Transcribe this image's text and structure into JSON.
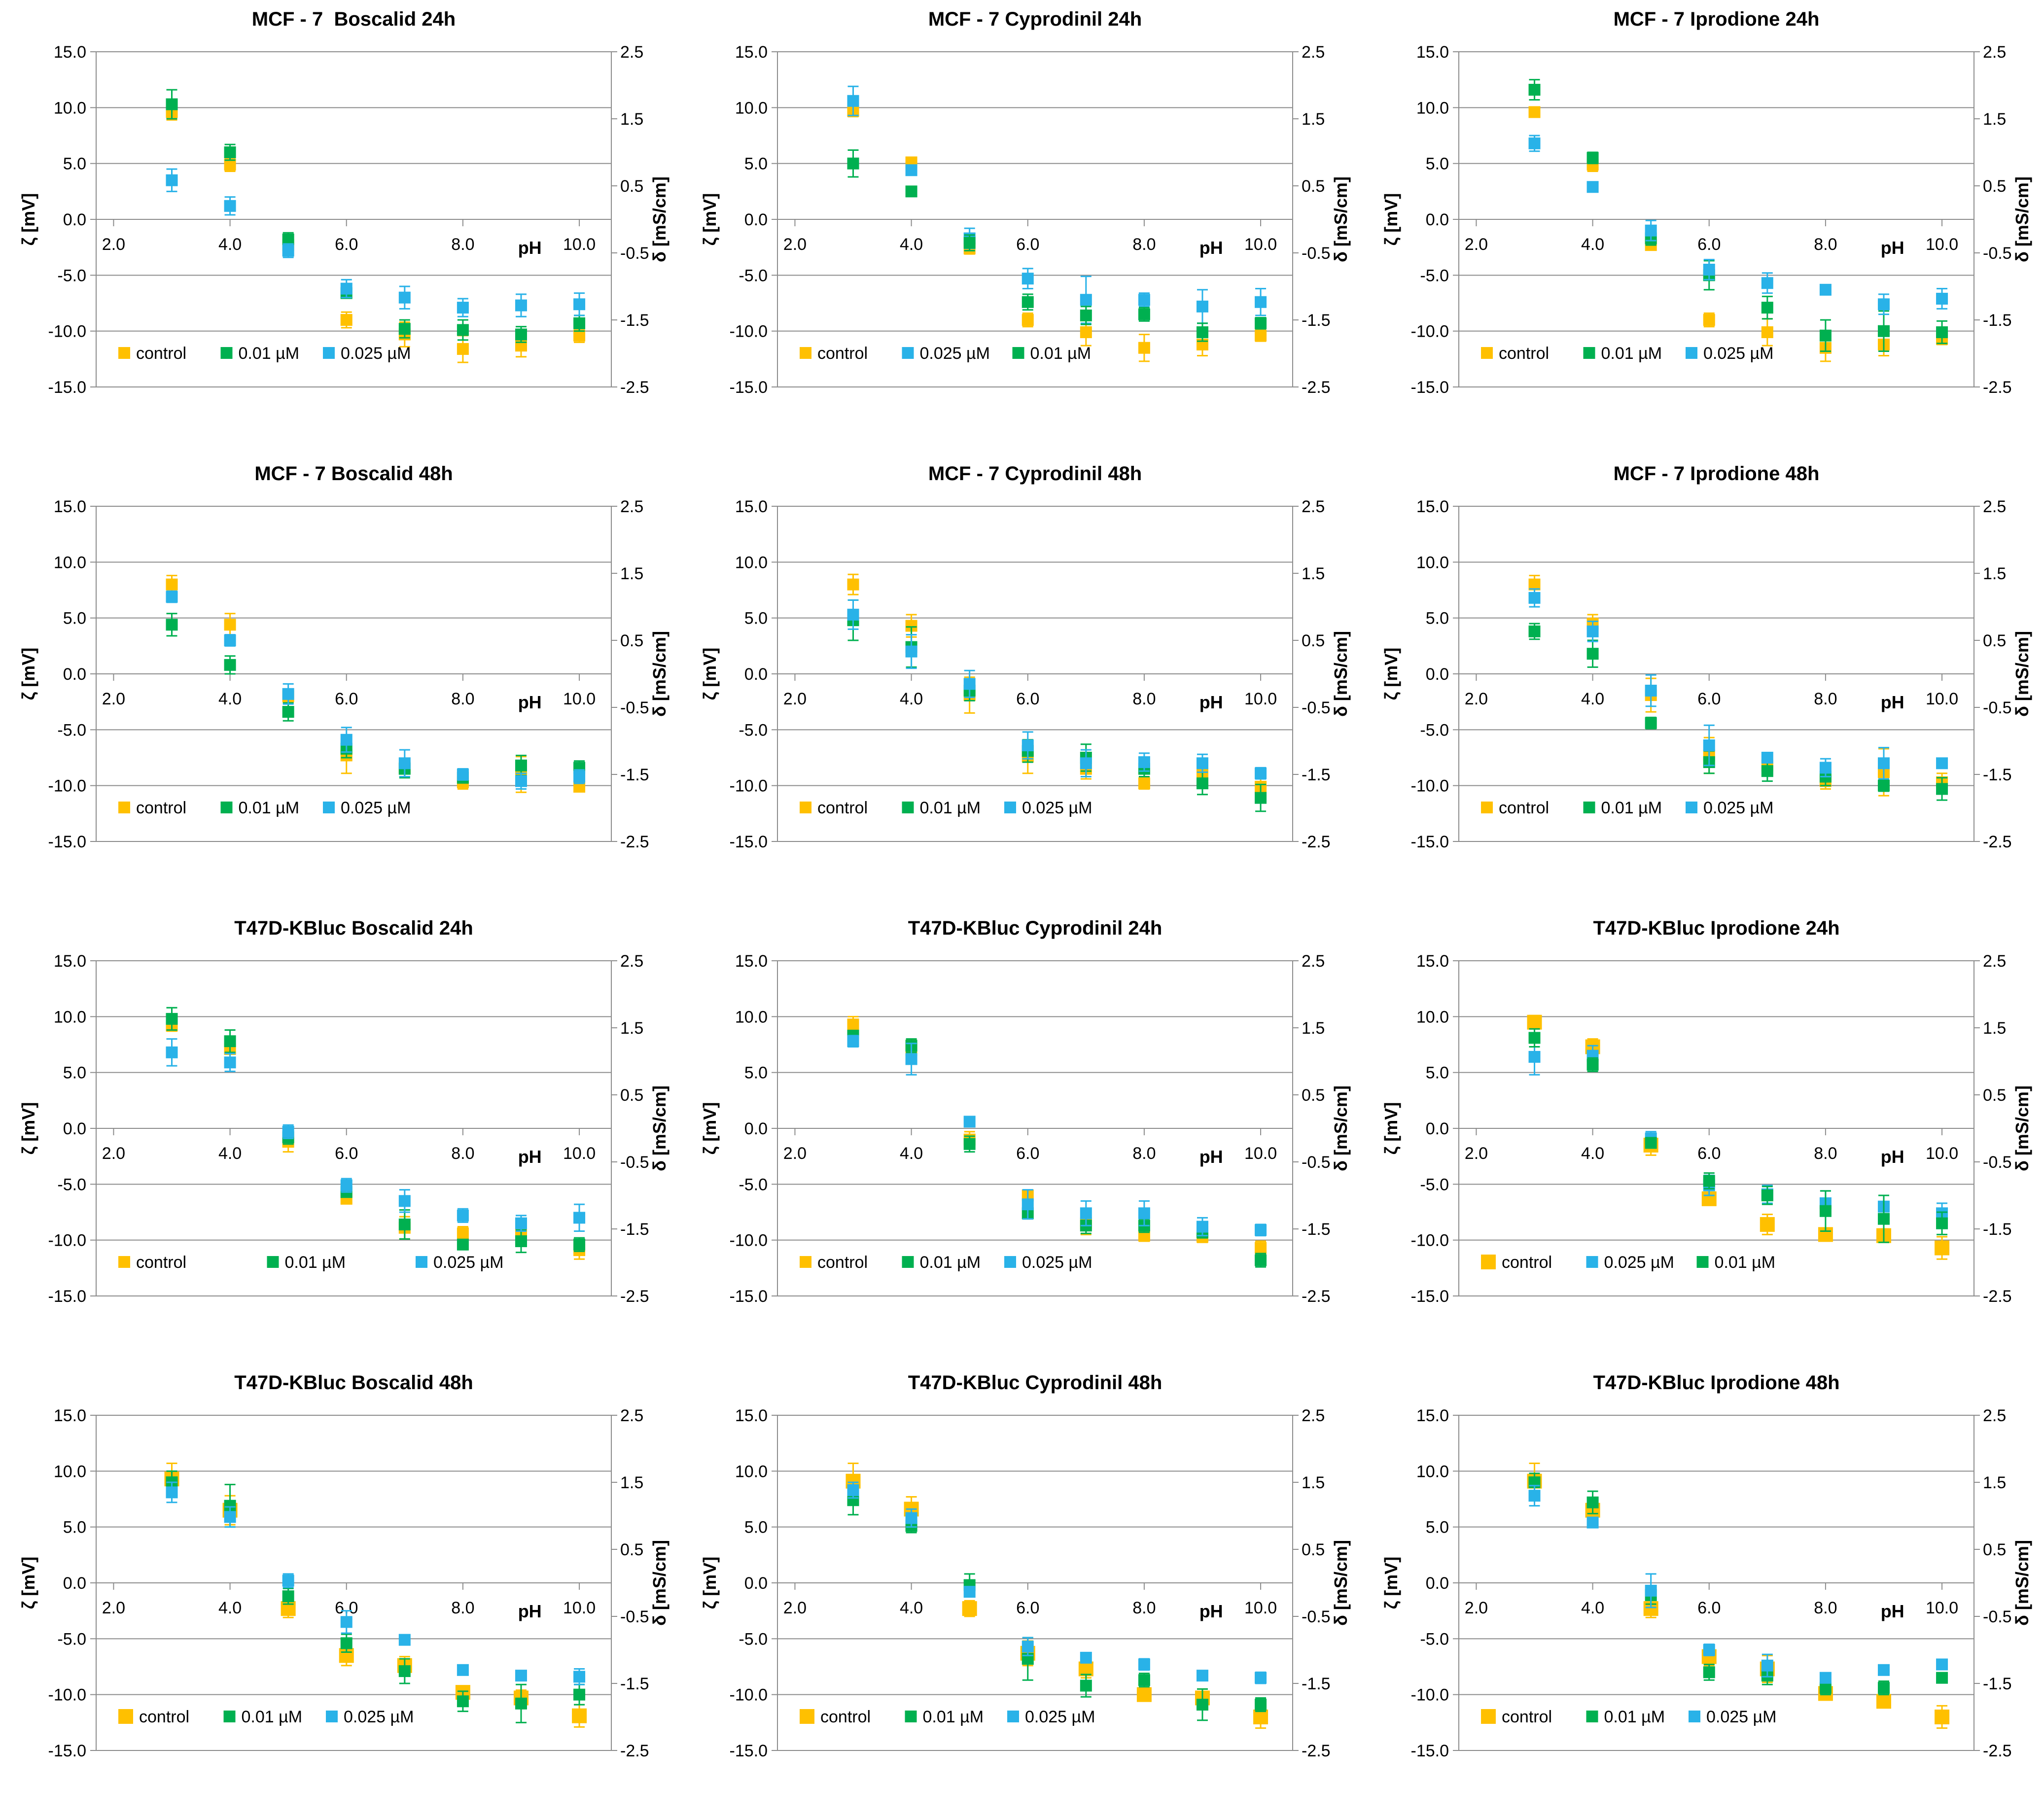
{
  "figure": {
    "kind": "scatter-grid",
    "rows": 4,
    "cols": 3,
    "background": "#FFFFFF"
  },
  "colors": {
    "control": "#FFC000",
    "um001": "#00B050",
    "um0025": "#29B2E8",
    "grid": "#8C8C8C",
    "text": "#000000"
  },
  "series_labels": {
    "control": "control",
    "um001": "0.01 µM",
    "um0025": "0.025 µM"
  },
  "axes": {
    "xlabel": "pH",
    "ylabel_left": "ζ [mV]",
    "ylabel_right": "δ [mS/cm]",
    "x_ticks": [
      2,
      4,
      6,
      8,
      10
    ],
    "x_tick_labels": [
      "2.0",
      "4.0",
      "6.0",
      "8.0",
      "10.0"
    ],
    "y_left_ticks": [
      15,
      10,
      5,
      0,
      -5,
      -10,
      -15
    ],
    "y_left_tick_labels": [
      "15.0",
      "10.0",
      "5.0",
      "0.0",
      "-5.0",
      "-10.0",
      "-15.0"
    ],
    "y_right_ticks": [
      2.5,
      1.5,
      0.5,
      -0.5,
      -1.5,
      -2.5
    ],
    "y_right_tick_labels": [
      "2.5",
      "1.5",
      "0.5",
      "-0.5",
      "-1.5",
      "-2.5"
    ],
    "xlim": [
      1.7,
      10.55
    ],
    "ylim_left": [
      -15,
      15
    ],
    "ylim_right": [
      -2.5,
      2.5
    ],
    "grid": "horizontal-major"
  },
  "x_values": [
    3,
    4,
    5,
    6,
    7,
    8,
    9,
    10
  ],
  "chart_data": [
    {
      "type": "scatter",
      "title": "MCF - 7  Boscalid 24h",
      "series": [
        {
          "key": "control",
          "values": [
            9.6,
            4.9,
            -2.3,
            -9.0,
            -10.3,
            -11.6,
            -11.3,
            -10.4
          ],
          "errors": [
            0.7,
            0.6,
            0.5,
            0.7,
            1.1,
            1.2,
            1.0,
            0.6
          ]
        },
        {
          "key": "um001",
          "values": [
            10.3,
            6.0,
            -1.8,
            -6.6,
            -9.8,
            -9.9,
            -10.3,
            -9.3
          ],
          "errors": [
            1.3,
            0.7,
            0.6,
            0.4,
            0.8,
            0.9,
            0.7,
            0.7
          ]
        },
        {
          "key": "um0025",
          "values": [
            3.5,
            1.2,
            -2.8,
            -6.2,
            -7.0,
            -7.9,
            -7.7,
            -7.6
          ],
          "errors": [
            1.0,
            0.8,
            0.6,
            0.8,
            1.0,
            0.8,
            1.0,
            1.0
          ]
        }
      ]
    },
    {
      "type": "scatter",
      "title": "MCF - 7 Cyprodinil 24h",
      "series": [
        {
          "key": "control",
          "values": [
            9.7,
            5.1,
            -2.6,
            -9.0,
            -10.1,
            -11.5,
            -11.2,
            -10.4
          ],
          "errors": [
            0.5,
            0.4,
            0.5,
            0.6,
            1.2,
            1.2,
            1.0,
            0.5
          ]
        },
        {
          "key": "um0025",
          "values": [
            10.6,
            4.4,
            -1.7,
            -5.3,
            -7.2,
            -7.2,
            -7.8,
            -7.4
          ],
          "errors": [
            1.3,
            0.4,
            0.9,
            0.9,
            2.1,
            0.6,
            1.5,
            1.2
          ]
        },
        {
          "key": "um001",
          "values": [
            5.0,
            2.5,
            -2.1,
            -7.4,
            -8.6,
            -8.5,
            -10.1,
            -9.3
          ],
          "errors": [
            1.2,
            0.4,
            0.7,
            0.7,
            0.8,
            0.6,
            0.8,
            0.5
          ]
        }
      ]
    },
    {
      "type": "scatter",
      "title": "MCF - 7 Iprodione 24h",
      "series": [
        {
          "key": "control",
          "values": [
            9.6,
            4.9,
            -2.3,
            -9.0,
            -10.1,
            -11.5,
            -11.2,
            -10.7
          ],
          "errors": [
            0.4,
            0.6,
            0.4,
            0.6,
            1.2,
            1.2,
            1.0,
            0.5
          ]
        },
        {
          "key": "um001",
          "values": [
            11.6,
            5.5,
            -1.7,
            -5.0,
            -7.9,
            -10.4,
            -10.0,
            -10.1
          ],
          "errors": [
            0.9,
            0.5,
            0.6,
            1.3,
            1.0,
            1.4,
            1.8,
            1.0
          ]
        },
        {
          "key": "um0025",
          "values": [
            6.8,
            2.9,
            -1.0,
            -4.5,
            -5.7,
            -6.3,
            -7.6,
            -7.1
          ],
          "errors": [
            0.7,
            0.4,
            0.9,
            0.9,
            0.9,
            0.3,
            0.9,
            0.9
          ]
        }
      ]
    },
    {
      "type": "scatter",
      "title": "MCF - 7 Boscalid 48h",
      "series": [
        {
          "key": "control",
          "values": [
            8.0,
            4.4,
            -2.0,
            -7.3,
            -8.4,
            -9.7,
            -9.0,
            -10.1
          ],
          "errors": [
            0.8,
            1.0,
            0.6,
            1.6,
            0.8,
            0.6,
            1.6,
            0.4
          ]
        },
        {
          "key": "um001",
          "values": [
            4.4,
            0.8,
            -3.4,
            -6.7,
            -8.5,
            -9.3,
            -8.2,
            -8.4
          ],
          "errors": [
            1.0,
            0.8,
            0.8,
            0.8,
            0.8,
            0.4,
            0.9,
            0.6
          ]
        },
        {
          "key": "um0025",
          "values": [
            6.9,
            3.0,
            -1.8,
            -5.9,
            -8.0,
            -9.0,
            -9.6,
            -9.2
          ],
          "errors": [
            0.5,
            0.5,
            0.9,
            1.1,
            1.2,
            0.5,
            0.7,
            0.6
          ]
        }
      ]
    },
    {
      "type": "scatter",
      "title": "MCF - 7 Cyprodinil 48h",
      "series": [
        {
          "key": "control",
          "values": [
            8.0,
            4.3,
            -1.9,
            -7.4,
            -8.5,
            -9.8,
            -9.0,
            -10.1
          ],
          "errors": [
            0.9,
            1.0,
            1.6,
            1.5,
            0.9,
            0.5,
            0.7,
            0.8
          ]
        },
        {
          "key": "um001",
          "values": [
            4.8,
            2.4,
            -1.5,
            -6.9,
            -7.5,
            -8.5,
            -9.8,
            -11.1
          ],
          "errors": [
            1.8,
            1.8,
            0.9,
            1.0,
            1.2,
            0.7,
            1.0,
            1.2
          ]
        },
        {
          "key": "um0025",
          "values": [
            5.3,
            2.0,
            -0.9,
            -6.4,
            -8.0,
            -7.9,
            -8.0,
            -8.9
          ],
          "errors": [
            1.3,
            1.5,
            1.2,
            1.2,
            1.2,
            0.8,
            0.8,
            0.5
          ]
        }
      ]
    },
    {
      "type": "scatter",
      "title": "MCF - 7 Iprodione 48h",
      "series": [
        {
          "key": "control",
          "values": [
            8.0,
            4.5,
            -1.9,
            -7.3,
            -8.2,
            -9.6,
            -8.8,
            -9.7
          ],
          "errors": [
            0.8,
            0.8,
            1.5,
            1.6,
            0.9,
            0.7,
            2.1,
            0.8
          ]
        },
        {
          "key": "um001",
          "values": [
            3.8,
            1.8,
            -4.4,
            -7.9,
            -8.7,
            -9.2,
            -10.0,
            -10.3
          ],
          "errors": [
            0.7,
            1.2,
            0.5,
            1.0,
            0.9,
            0.8,
            0.5,
            1.0
          ]
        },
        {
          "key": "um0025",
          "values": [
            6.8,
            3.8,
            -1.5,
            -6.4,
            -7.5,
            -8.4,
            -8.0,
            -8.0
          ],
          "errors": [
            0.8,
            0.9,
            1.4,
            1.8,
            0.4,
            0.8,
            1.4,
            0.3
          ]
        }
      ]
    },
    {
      "type": "scatter",
      "title": "T47D-KBluc Boscalid 24h",
      "legend_spread": true,
      "series": [
        {
          "key": "control",
          "values": [
            9.2,
            7.1,
            -1.2,
            -6.3,
            -8.9,
            -9.4,
            -9.4,
            -10.9
          ],
          "errors": [
            0.5,
            0.9,
            0.9,
            0.4,
            1.0,
            0.6,
            0.5,
            0.8
          ]
        },
        {
          "key": "um001",
          "values": [
            9.8,
            7.8,
            -0.8,
            -5.7,
            -8.6,
            -10.4,
            -10.1,
            -10.4
          ],
          "errors": [
            1.0,
            1.0,
            0.6,
            0.4,
            1.3,
            0.3,
            1.0,
            0.6
          ]
        },
        {
          "key": "um0025",
          "values": [
            6.8,
            5.9,
            -0.3,
            -5.1,
            -6.5,
            -7.8,
            -8.5,
            -8.0
          ],
          "errors": [
            1.2,
            0.8,
            0.6,
            0.6,
            1.0,
            0.6,
            0.7,
            1.2
          ]
        }
      ]
    },
    {
      "type": "scatter",
      "title": "T47D-KBluc Cyprodinil 24h",
      "series": [
        {
          "key": "control",
          "values": [
            9.3,
            7.0,
            -1.0,
            -6.0,
            -8.5,
            -9.6,
            -9.7,
            -10.7
          ],
          "errors": [
            0.7,
            0.9,
            0.7,
            0.4,
            1.0,
            0.5,
            0.5,
            0.6
          ]
        },
        {
          "key": "um001",
          "values": [
            8.3,
            7.4,
            -1.4,
            -7.6,
            -8.7,
            -8.7,
            -9.3,
            -11.8
          ],
          "errors": [
            0.4,
            0.6,
            0.7,
            0.5,
            0.7,
            0.6,
            0.5,
            0.6
          ]
        },
        {
          "key": "um0025",
          "values": [
            7.8,
            6.2,
            0.6,
            -6.8,
            -7.6,
            -7.6,
            -8.8,
            -9.1
          ],
          "errors": [
            0.5,
            1.4,
            0.4,
            1.3,
            1.1,
            1.1,
            0.8,
            0.5
          ]
        }
      ]
    },
    {
      "type": "scatter",
      "title": "T47D-KBluc Iprodione 24h",
      "series": [
        {
          "key": "control",
          "values": [
            9.5,
            7.3,
            -1.5,
            -6.3,
            -8.6,
            -9.5,
            -9.6,
            -10.7
          ],
          "errors": [
            0.6,
            0.7,
            0.9,
            0.3,
            0.9,
            0.5,
            0.6,
            1.0
          ],
          "size": 30
        },
        {
          "key": "um0025",
          "values": [
            6.4,
            6.5,
            -0.9,
            -5.1,
            -5.9,
            -6.7,
            -7.0,
            -7.6
          ],
          "errors": [
            1.6,
            0.9,
            0.6,
            0.9,
            0.8,
            1.1,
            1.0,
            0.9
          ]
        },
        {
          "key": "um001",
          "values": [
            8.1,
            5.7,
            -1.3,
            -4.7,
            -6.0,
            -7.4,
            -8.1,
            -8.5
          ],
          "errors": [
            0.8,
            0.6,
            0.4,
            0.7,
            0.8,
            1.8,
            2.1,
            1.0
          ]
        }
      ]
    },
    {
      "type": "scatter",
      "title": "T47D-KBluc Boscalid 48h",
      "series": [
        {
          "key": "control",
          "values": [
            9.3,
            6.5,
            -2.3,
            -6.5,
            -7.4,
            -9.8,
            -10.3,
            -11.9
          ],
          "errors": [
            1.4,
            1.3,
            0.8,
            0.9,
            0.8,
            0.5,
            0.7,
            1.0
          ],
          "size": 30
        },
        {
          "key": "um001",
          "values": [
            9.0,
            6.9,
            -1.2,
            -5.4,
            -7.9,
            -10.6,
            -10.8,
            -10.0
          ],
          "errors": [
            1.0,
            1.9,
            0.7,
            0.8,
            1.1,
            0.9,
            1.7,
            0.9
          ]
        },
        {
          "key": "um0025",
          "values": [
            8.1,
            5.9,
            0.2,
            -3.5,
            -5.1,
            -7.8,
            -8.3,
            -8.4
          ],
          "errors": [
            0.9,
            0.9,
            0.6,
            1.0,
            0.3,
            0.4,
            0.3,
            0.7
          ]
        }
      ]
    },
    {
      "type": "scatter",
      "title": "T47D-KBluc Cyprodinil 48h",
      "series": [
        {
          "key": "control",
          "values": [
            9.1,
            6.6,
            -2.3,
            -6.3,
            -7.7,
            -10.0,
            -10.3,
            -12.0
          ],
          "errors": [
            1.6,
            1.1,
            0.7,
            1.1,
            0.8,
            0.4,
            0.8,
            1.0
          ],
          "size": 30
        },
        {
          "key": "um001",
          "values": [
            7.4,
            5.1,
            -0.2,
            -6.8,
            -9.2,
            -8.7,
            -10.9,
            -10.9
          ],
          "errors": [
            1.3,
            0.6,
            1.0,
            1.9,
            1.0,
            0.6,
            1.4,
            0.6
          ]
        },
        {
          "key": "um0025",
          "values": [
            8.3,
            5.8,
            -0.8,
            -5.7,
            -6.7,
            -7.3,
            -8.3,
            -8.5
          ],
          "errors": [
            0.7,
            0.8,
            0.4,
            0.8,
            0.4,
            0.5,
            0.4,
            0.5
          ]
        }
      ]
    },
    {
      "type": "scatter",
      "title": "T47D-KBluc Iprodione 48h",
      "series": [
        {
          "key": "control",
          "values": [
            9.1,
            6.5,
            -2.3,
            -6.6,
            -7.7,
            -9.9,
            -10.6,
            -12.0
          ],
          "errors": [
            1.6,
            0.8,
            0.8,
            0.8,
            1.2,
            0.4,
            0.4,
            1.0
          ],
          "size": 30
        },
        {
          "key": "um001",
          "values": [
            9.0,
            7.2,
            -1.1,
            -8.0,
            -8.3,
            -9.4,
            -9.4,
            -8.5
          ],
          "errors": [
            0.8,
            1.0,
            0.8,
            0.7,
            0.8,
            0.6,
            0.6,
            0.3
          ]
        },
        {
          "key": "um0025",
          "values": [
            7.8,
            5.4,
            -0.7,
            -6.0,
            -7.4,
            -8.5,
            -7.8,
            -7.3
          ],
          "errors": [
            0.9,
            0.4,
            1.5,
            0.5,
            1.0,
            0.4,
            0.4,
            0.4
          ]
        }
      ]
    }
  ]
}
